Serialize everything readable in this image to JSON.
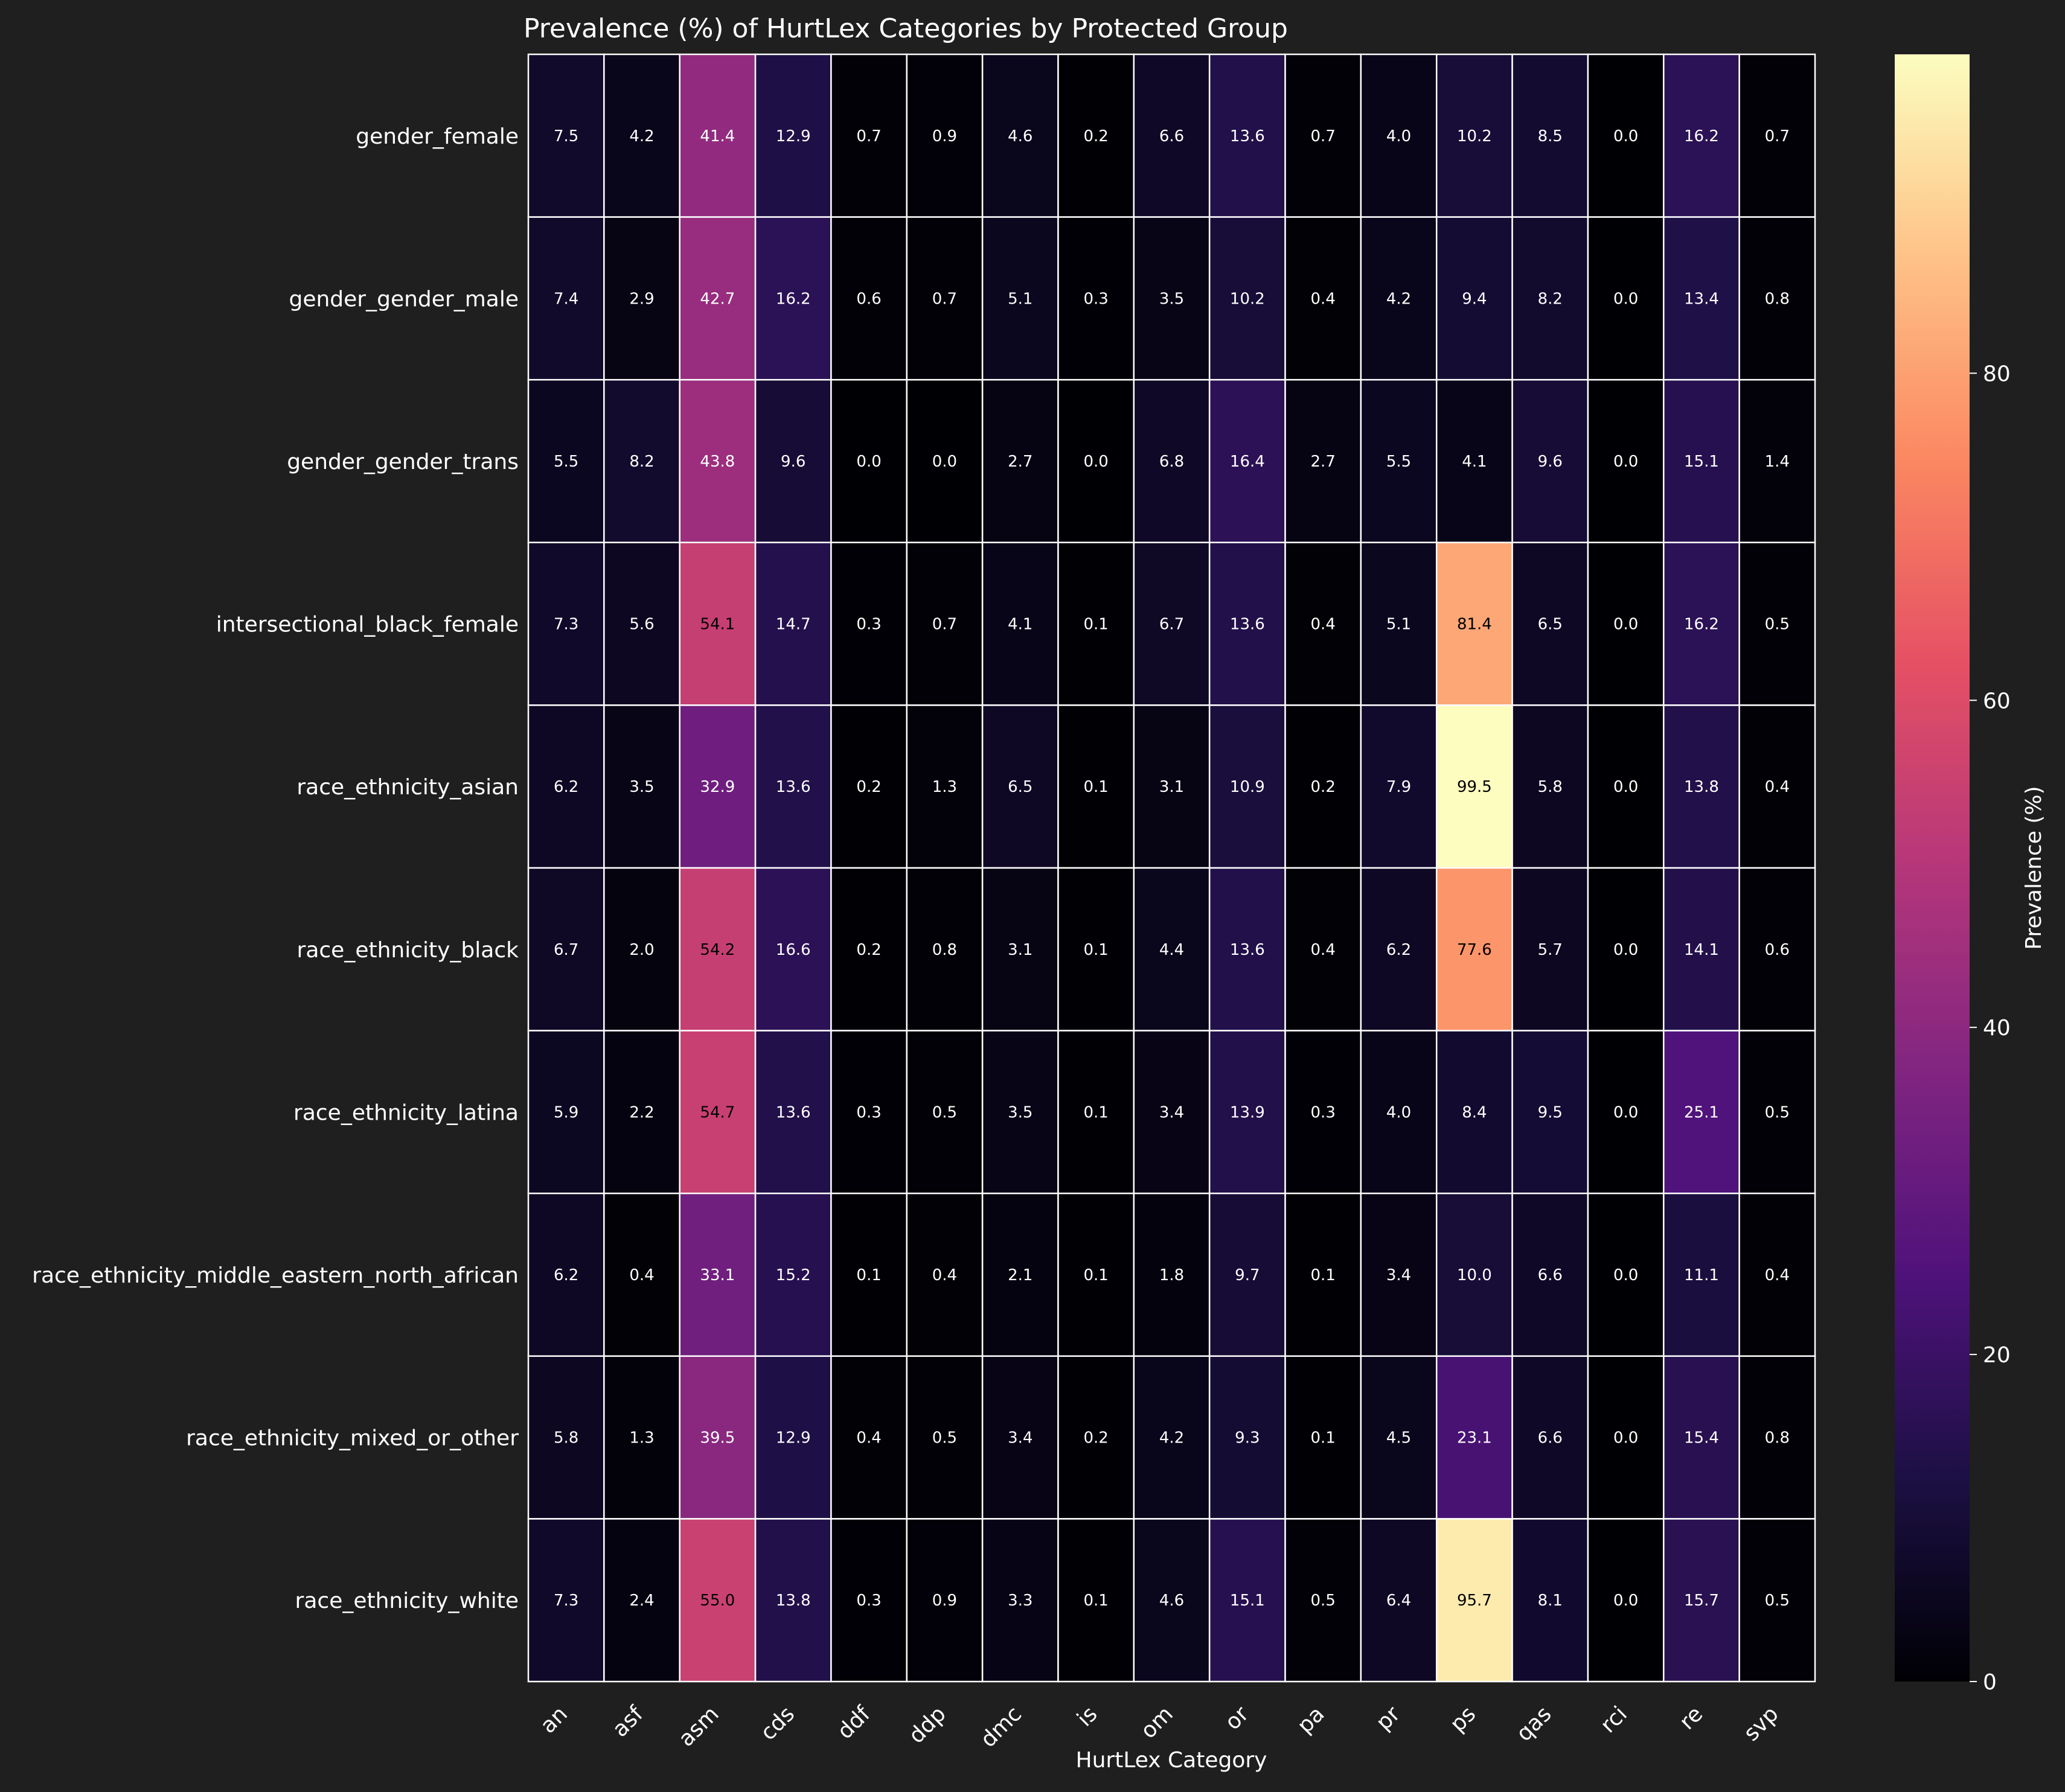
{
  "chart_data": {
    "type": "heatmap",
    "title": "Prevalence (%) of HurtLex Categories by Protected Group",
    "xlabel": "HurtLex Category",
    "ylabel": "",
    "colorbar_label": "Prevalence (%)",
    "colormap": "magma",
    "value_range": [
      0,
      99.5
    ],
    "colorbar_ticks": [
      "0",
      "20",
      "40",
      "60",
      "80"
    ],
    "columns": [
      "an",
      "asf",
      "asm",
      "cds",
      "ddf",
      "ddp",
      "dmc",
      "is",
      "om",
      "or",
      "pa",
      "pr",
      "ps",
      "qas",
      "rci",
      "re",
      "svp"
    ],
    "rows": [
      "gender_female",
      "gender_gender_male",
      "gender_gender_trans",
      "intersectional_black_female",
      "race_ethnicity_asian",
      "race_ethnicity_black",
      "race_ethnicity_latina",
      "race_ethnicity_middle_eastern_north_african",
      "race_ethnicity_mixed_or_other",
      "race_ethnicity_white"
    ],
    "values": [
      [
        7.5,
        4.2,
        41.4,
        12.9,
        0.7,
        0.9,
        4.6,
        0.2,
        6.6,
        13.6,
        0.7,
        4.0,
        10.2,
        8.5,
        0.0,
        16.2,
        0.7
      ],
      [
        7.4,
        2.9,
        42.7,
        16.2,
        0.6,
        0.7,
        5.1,
        0.3,
        3.5,
        10.2,
        0.4,
        4.2,
        9.4,
        8.2,
        0.0,
        13.4,
        0.8
      ],
      [
        5.5,
        8.2,
        43.8,
        9.6,
        0.0,
        0.0,
        2.7,
        0.0,
        6.8,
        16.4,
        2.7,
        5.5,
        4.1,
        9.6,
        0.0,
        15.1,
        1.4
      ],
      [
        7.3,
        5.6,
        54.1,
        14.7,
        0.3,
        0.7,
        4.1,
        0.1,
        6.7,
        13.6,
        0.4,
        5.1,
        81.4,
        6.5,
        0.0,
        16.2,
        0.5
      ],
      [
        6.2,
        3.5,
        32.9,
        13.6,
        0.2,
        1.3,
        6.5,
        0.1,
        3.1,
        10.9,
        0.2,
        7.9,
        99.5,
        5.8,
        0.0,
        13.8,
        0.4
      ],
      [
        6.7,
        2.0,
        54.2,
        16.6,
        0.2,
        0.8,
        3.1,
        0.1,
        4.4,
        13.6,
        0.4,
        6.2,
        77.6,
        5.7,
        0.0,
        14.1,
        0.6
      ],
      [
        5.9,
        2.2,
        54.7,
        13.6,
        0.3,
        0.5,
        3.5,
        0.1,
        3.4,
        13.9,
        0.3,
        4.0,
        8.4,
        9.5,
        0.0,
        25.1,
        0.5
      ],
      [
        6.2,
        0.4,
        33.1,
        15.2,
        0.1,
        0.4,
        2.1,
        0.1,
        1.8,
        9.7,
        0.1,
        3.4,
        10.0,
        6.6,
        0.0,
        11.1,
        0.4
      ],
      [
        5.8,
        1.3,
        39.5,
        12.9,
        0.4,
        0.5,
        3.4,
        0.2,
        4.2,
        9.3,
        0.1,
        4.5,
        23.1,
        6.6,
        0.0,
        15.4,
        0.8
      ],
      [
        7.3,
        2.4,
        55.0,
        13.8,
        0.3,
        0.9,
        3.3,
        0.1,
        4.6,
        15.1,
        0.5,
        6.4,
        95.7,
        8.1,
        0.0,
        15.7,
        0.5
      ]
    ]
  }
}
